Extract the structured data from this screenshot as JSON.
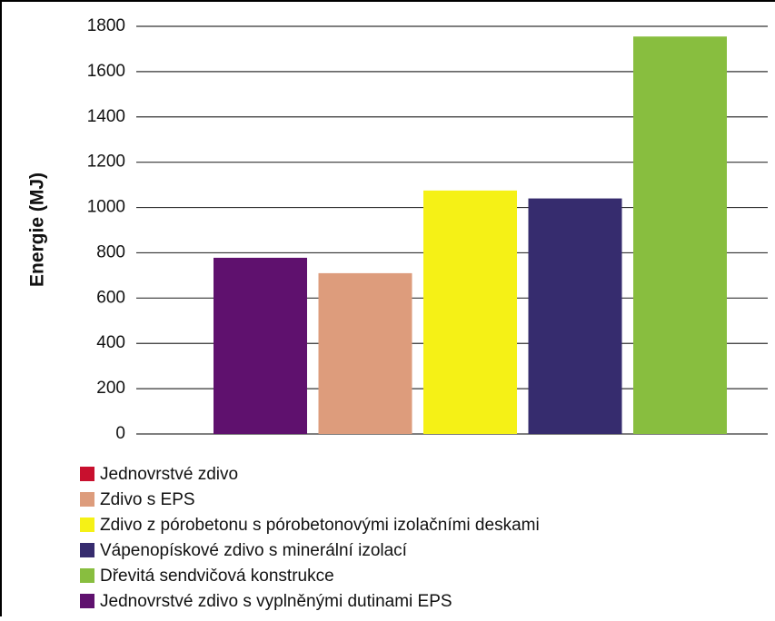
{
  "chart_data": {
    "type": "bar",
    "ylabel": "Energie (MJ)",
    "series": [
      {
        "name": "Jednovrstvé zdivo",
        "color": "#c8102e",
        "values": [
          null
        ]
      },
      {
        "name": "Zdivo s EPS",
        "color": "#dd9c7c",
        "values": [
          710
        ]
      },
      {
        "name": "Zdivo z pórobetonu s pórobetonovými izolačními deskami",
        "color": "#f5f116",
        "values": [
          1075
        ]
      },
      {
        "name": "Vápenopískové zdivo s minerální izolací",
        "color": "#362c6e",
        "values": [
          1040
        ]
      },
      {
        "name": "Dřevitá sendvičová konstrukce",
        "color": "#88be3f",
        "values": [
          1755
        ]
      },
      {
        "name": "Jednovrstvé zdivo s vyplněnými dutinami EPS",
        "color": "#5f116e",
        "values": [
          778
        ]
      }
    ],
    "ylim": [
      0,
      1800
    ],
    "yticks": [
      0,
      200,
      400,
      600,
      800,
      1000,
      1200,
      1400,
      1600,
      1800
    ],
    "grid": true
  }
}
